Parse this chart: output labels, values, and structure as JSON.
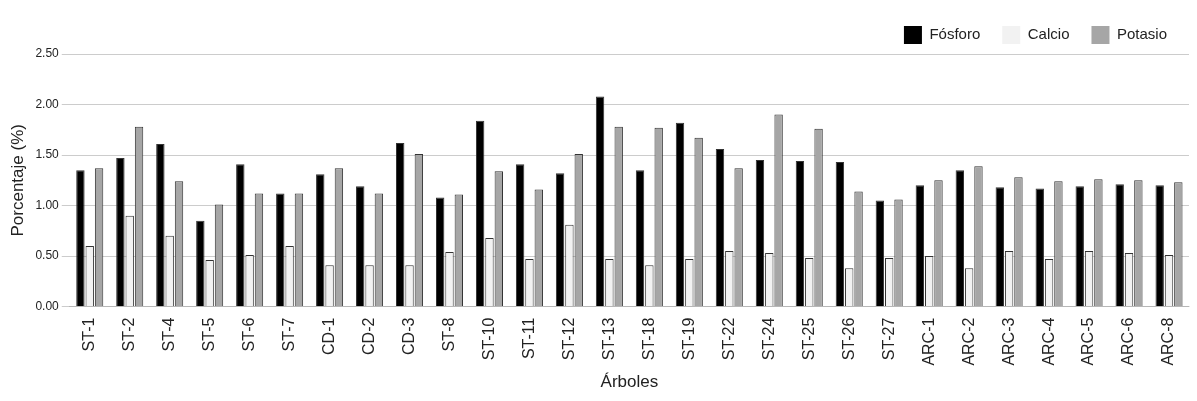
{
  "chart_data": {
    "type": "bar",
    "xlabel": "Árboles",
    "ylabel": "Porcentaje (%)",
    "categories": [
      "ST-1",
      "ST-2",
      "ST-4",
      "ST-5",
      "ST-6",
      "ST-7",
      "CD-1",
      "CD-2",
      "CD-3",
      "ST-8",
      "ST-10",
      "ST-11",
      "ST-12",
      "ST-13",
      "ST-18",
      "ST-19",
      "ST-22",
      "ST-24",
      "ST-25",
      "ST-26",
      "ST-27",
      "ARC-1",
      "ARC-2",
      "ARC-3",
      "ARC-4",
      "ARC-5",
      "ARC-6",
      "ARC-8"
    ],
    "series": [
      {
        "name": "Fósforo",
        "color": "#000000",
        "values": [
          1.35,
          1.47,
          1.61,
          0.85,
          1.41,
          1.12,
          1.31,
          1.19,
          1.62,
          1.08,
          1.84,
          1.41,
          1.32,
          2.08,
          1.35,
          1.82,
          1.56,
          1.45,
          1.44,
          1.43,
          1.05,
          1.2,
          1.35,
          1.18,
          1.17,
          1.19,
          1.21,
          1.2
        ]
      },
      {
        "name": "Calcio",
        "color": "#f2f2f2",
        "values": [
          0.6,
          0.9,
          0.7,
          0.46,
          0.51,
          0.6,
          0.41,
          0.41,
          0.41,
          0.54,
          0.68,
          0.47,
          0.81,
          0.47,
          0.41,
          0.47,
          0.55,
          0.53,
          0.48,
          0.38,
          0.48,
          0.5,
          0.38,
          0.55,
          0.47,
          0.55,
          0.53,
          0.51
        ]
      },
      {
        "name": "Potasio",
        "color": "#a6a6a6",
        "values": [
          1.37,
          1.78,
          1.24,
          1.01,
          1.12,
          1.12,
          1.37,
          1.12,
          1.51,
          1.11,
          1.34,
          1.16,
          1.51,
          1.78,
          1.77,
          1.67,
          1.37,
          1.9,
          1.76,
          1.14,
          1.06,
          1.25,
          1.39,
          1.28,
          1.24,
          1.26,
          1.25,
          1.23
        ]
      }
    ],
    "ylim": [
      0,
      2.5
    ],
    "yticks": [
      {
        "value": 0,
        "label": "0.00"
      },
      {
        "value": 0.5,
        "label": "0.50"
      },
      {
        "value": 1,
        "label": "1.00"
      },
      {
        "value": 1.5,
        "label": "1.50"
      },
      {
        "value": 2,
        "label": "2.00"
      },
      {
        "value": 2.5,
        "label": "2.50"
      }
    ],
    "grid": "y",
    "legend": "top right"
  }
}
